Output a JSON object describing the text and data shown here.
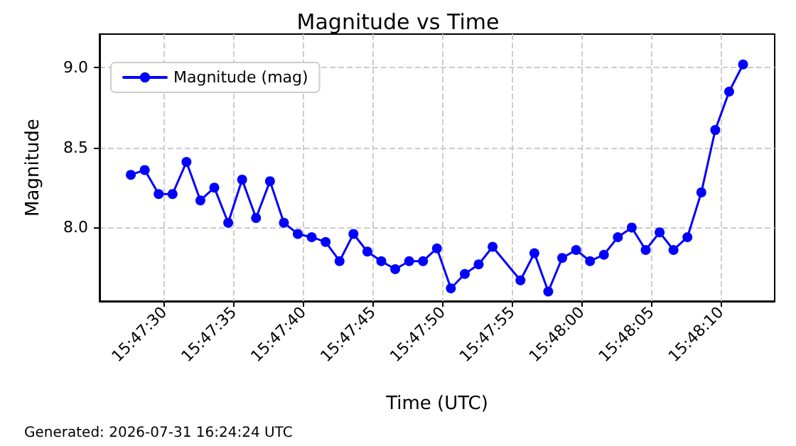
{
  "chart_data": {
    "type": "line",
    "title": "Magnitude vs Time",
    "xlabel": "Time (UTC)",
    "ylabel": "Magnitude",
    "annotations": [
      "Generated: 2026-07-31 16:24:24 UTC"
    ],
    "x": [
      15.791,
      15.791278,
      15.791556,
      15.791833,
      15.792111,
      15.792389,
      15.792667,
      15.792944,
      15.793222,
      15.7935,
      15.793778,
      15.794056,
      15.794333,
      15.794611,
      15.794889,
      15.795167,
      15.795444,
      15.795722,
      15.796,
      15.796278,
      15.796556,
      15.796833,
      15.797111,
      15.797389,
      15.797667,
      15.797944,
      15.798222,
      15.798778,
      15.799056,
      15.799333,
      15.799611,
      15.799889,
      15.800167,
      15.800444,
      15.800722,
      15.801,
      15.801278,
      15.801556,
      15.801833,
      15.802111,
      15.802389,
      15.802667,
      15.802944,
      15.803222
    ],
    "series": [
      {
        "name": "Magnitude (mag)",
        "color": "#0000ff",
        "values": [
          8.33,
          8.36,
          8.21,
          8.21,
          8.41,
          8.17,
          8.25,
          8.03,
          8.3,
          8.06,
          8.29,
          8.03,
          7.96,
          7.94,
          7.91,
          7.79,
          7.96,
          7.85,
          7.79,
          7.74,
          7.79,
          7.79,
          7.87,
          7.62,
          7.71,
          7.77,
          7.88,
          7.67,
          7.84,
          7.6,
          7.81,
          7.86,
          7.79,
          7.83,
          7.94,
          8.0,
          7.86,
          7.97,
          7.86,
          7.94,
          8.22,
          8.61,
          8.85,
          9.02
        ]
      }
    ],
    "xlim": [
      15.790375,
      15.803853
    ],
    "xticks": [
      {
        "value": 15.791667,
        "label": "15:47:30"
      },
      {
        "value": 15.793056,
        "label": "15:47:35"
      },
      {
        "value": 15.794444,
        "label": "15:47:40"
      },
      {
        "value": 15.795833,
        "label": "15:47:45"
      },
      {
        "value": 15.797222,
        "label": "15:47:50"
      },
      {
        "value": 15.798611,
        "label": "15:47:55"
      },
      {
        "value": 15.8,
        "label": "15:48:00"
      },
      {
        "value": 15.801389,
        "label": "15:48:05"
      },
      {
        "value": 15.802778,
        "label": "15:48:10"
      }
    ],
    "ylim": [
      7.54,
      9.21
    ],
    "yticks": [
      {
        "value": 8,
        "label": "8.0"
      },
      {
        "value": 8.5,
        "label": "8.5"
      },
      {
        "value": 9,
        "label": "9.0"
      }
    ],
    "grid": true,
    "legend": "top left",
    "marker": "circle",
    "line_style": "solid"
  }
}
